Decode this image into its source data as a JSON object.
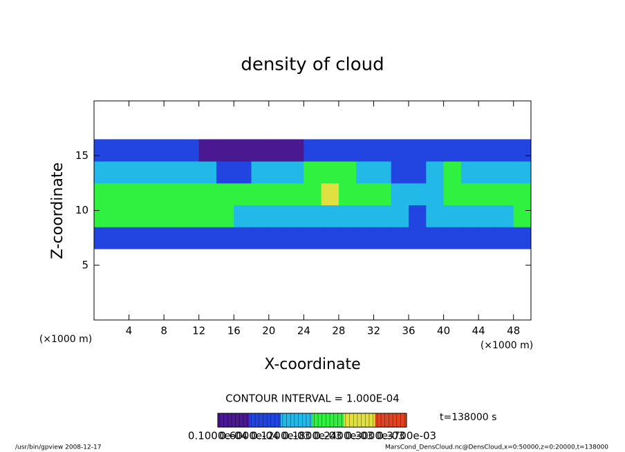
{
  "chart_data": {
    "type": "field",
    "title": "density of cloud",
    "xlabel": "X-coordinate",
    "ylabel": "Z-coordinate",
    "x_units": "(×1000 m)",
    "y_units": "(×1000 m)",
    "contour_interval": "CONTOUR INTERVAL = 1.000E-04",
    "time_label": "t=138000 s",
    "footer_left": "/usr/bin/gpview   2008-12-17",
    "footer_right": "MarsCond_DensCloud.nc@DensCloud,x=0:50000,z=0:20000,t=138000",
    "xlim": [
      0,
      50
    ],
    "ylim": [
      0,
      20
    ],
    "xticks": [
      4,
      8,
      12,
      16,
      20,
      24,
      28,
      32,
      36,
      40,
      44,
      48
    ],
    "yticks": [
      5,
      10,
      15
    ],
    "x": [
      1,
      3,
      5,
      7,
      9,
      11,
      13,
      15,
      17,
      19,
      21,
      23,
      25,
      27,
      29,
      31,
      33,
      35,
      37,
      39,
      41,
      43,
      45,
      47,
      49
    ],
    "z": [
      7.5,
      9.5,
      11.5,
      13.5,
      15.5
    ],
    "cell_width": 2,
    "cell_height": 2,
    "field": [
      [
        8e-05,
        9e-05,
        0.0001,
        0.00011,
        9e-05,
        8e-05,
        7e-05,
        0.0001,
        8e-05,
        7e-05,
        6e-05,
        9e-05,
        0.0001,
        9e-05,
        8e-05,
        7e-05,
        8e-05,
        8e-05,
        7e-05,
        6e-05,
        7e-05,
        8e-05,
        9e-05,
        8e-05,
        9e-05
      ],
      [
        0.00019,
        0.0002,
        0.0002,
        0.00021,
        0.00019,
        0.0002,
        0.0002,
        0.00019,
        0.00016,
        0.00016,
        0.00015,
        0.00016,
        0.00017,
        0.00016,
        0.00014,
        0.00013,
        0.00013,
        0.00012,
        0.00011,
        0.00013,
        0.00014,
        0.00015,
        0.00014,
        0.00016,
        0.00018
      ],
      [
        0.0002,
        0.00021,
        0.0002,
        0.00022,
        0.00023,
        0.00021,
        0.00022,
        0.00019,
        0.0002,
        0.0002,
        0.00019,
        0.00022,
        0.00023,
        0.00024,
        0.00022,
        0.0002,
        0.00018,
        0.00013,
        0.00012,
        0.00015,
        0.00019,
        0.0002,
        0.00018,
        0.00019,
        0.0002
      ],
      [
        0.00014,
        0.00016,
        0.00015,
        0.00012,
        0.00014,
        0.00013,
        0.00012,
        0.0001,
        8e-05,
        0.00013,
        0.00014,
        0.00016,
        0.00019,
        0.0002,
        0.0002,
        0.00015,
        0.00012,
        0.00011,
        0.0001,
        0.00014,
        0.00018,
        0.00016,
        0.00014,
        0.00013,
        0.00015
      ],
      [
        8e-05,
        8e-05,
        7e-05,
        8e-05,
        7e-05,
        6e-05,
        4e-05,
        3e-05,
        4e-05,
        3e-05,
        2e-05,
        5e-05,
        7e-05,
        8e-05,
        9e-05,
        9e-05,
        8e-05,
        8e-05,
        7e-05,
        8e-05,
        0.0001,
        0.0001,
        9e-05,
        0.0001,
        0.0001
      ]
    ],
    "levels": [
      1e-05,
      6e-05,
      0.00012,
      0.00018,
      0.00024,
      0.0003,
      0.00037
    ],
    "level_labels": [
      "0.1000e-04",
      "0.6000e-04",
      "0.1200e-03",
      "0.1800e-03",
      "0.2400e-03",
      "0.3000e-03",
      "0.3700e-03"
    ],
    "colors": [
      "#4a1890",
      "#2244e0",
      "#22b8e8",
      "#30f040",
      "#e0e040",
      "#e04422"
    ]
  }
}
